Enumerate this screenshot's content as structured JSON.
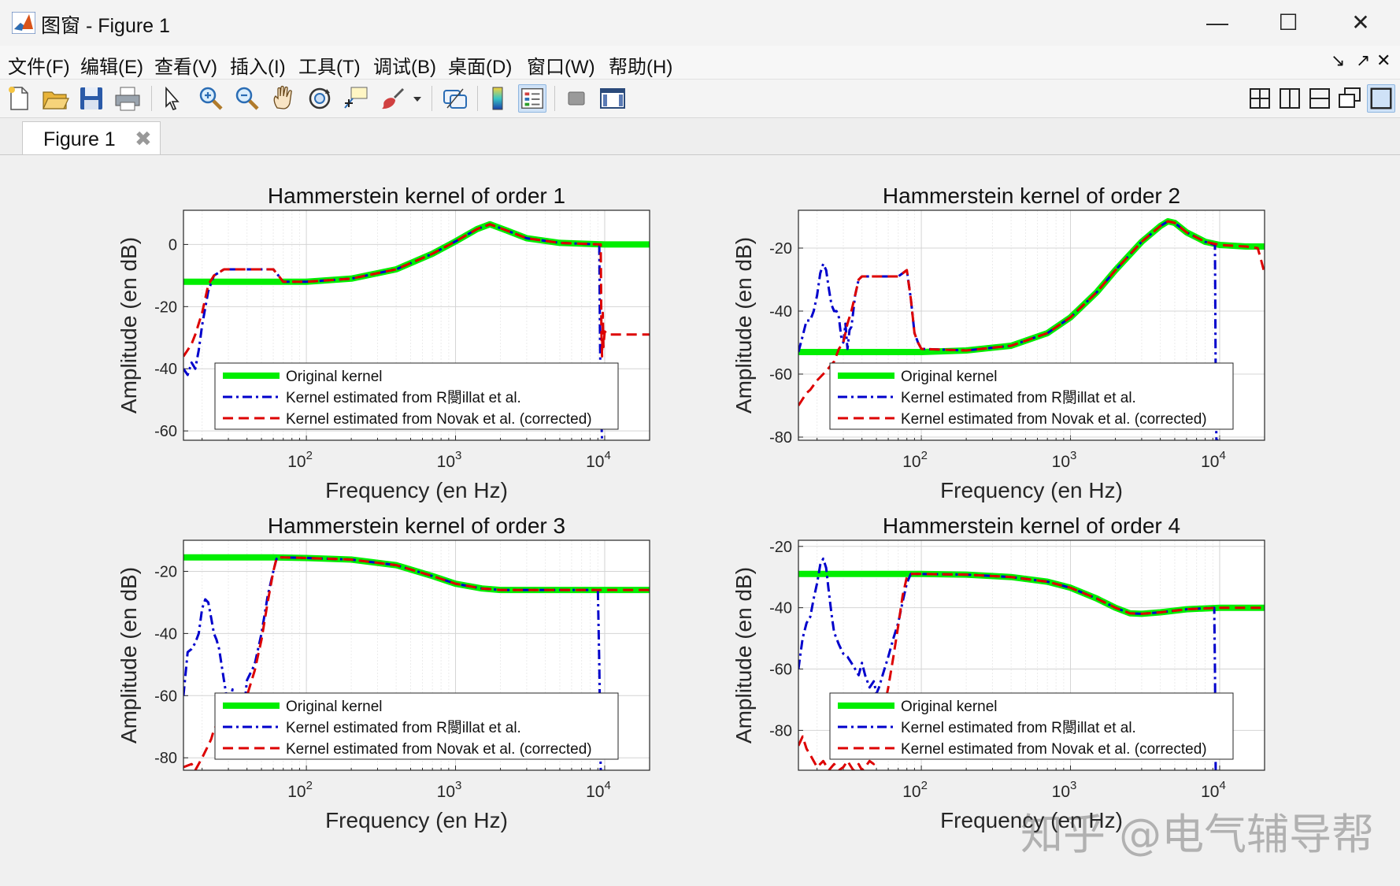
{
  "window": {
    "title": "图窗 - Figure 1",
    "minimize": "—",
    "maximize": "☐",
    "close": "✕"
  },
  "menu": [
    "文件(F)",
    "编辑(E)",
    "查看(V)",
    "插入(I)",
    "工具(T)",
    "调试(B)",
    "桌面(D)",
    "窗口(W)",
    "帮助(H)"
  ],
  "menu_right": [
    "↘",
    "↗",
    "✕"
  ],
  "toolbar": {
    "left": [
      "new-icon",
      "open-icon",
      "save-icon",
      "print-icon",
      "pointer-icon",
      "zoom-in-icon",
      "zoom-out-icon",
      "pan-icon",
      "rotate-3d-icon",
      "data-cursor-icon",
      "brush-icon",
      "link-icon",
      "colorbar-icon",
      "legend-icon",
      "hide-plot-tools-icon",
      "show-plot-tools-icon"
    ],
    "active": [
      "legend-icon"
    ],
    "right": [
      "tile-icon",
      "left-right-icon",
      "top-bottom-icon",
      "float-icon",
      "dock-icon"
    ]
  },
  "tab": {
    "label": "Figure 1",
    "close": "✖"
  },
  "watermark": "知乎 @电气辅导帮",
  "colors": {
    "original": "#00ee00",
    "rebillat": "#0000cc",
    "novak": "#dd0000",
    "axes_bg": "#ffffff",
    "figure_bg": "#f0f0f0"
  },
  "chart_data": [
    {
      "type": "line",
      "title": "Hammerstein kernel of order 1",
      "xlabel": "Frequency (en Hz)",
      "ylabel": "Amplitude (en dB)",
      "xscale": "log",
      "xlim": [
        15,
        20000
      ],
      "ylim": [
        -63,
        11
      ],
      "xticks": [
        100,
        1000,
        10000
      ],
      "xtick_labels": [
        "10^2",
        "10^3",
        "10^4"
      ],
      "yticks": [
        -60,
        -40,
        -20,
        0
      ],
      "grid": true,
      "legend_position": "bottom-right",
      "legend": [
        "Original kernel",
        "Kernel estimated from R閿illat et al.",
        "Kernel estimated from Novak et al. (corrected)"
      ],
      "series": [
        {
          "name": "Original kernel",
          "style": "solid-thick",
          "x": [
            15,
            30,
            60,
            100,
            200,
            400,
            700,
            1000,
            1400,
            1700,
            2200,
            3000,
            5000,
            10000,
            20000
          ],
          "y": [
            -12,
            -12,
            -12,
            -12,
            -11,
            -8,
            -3,
            1,
            5,
            6.5,
            4.5,
            2,
            0.5,
            0,
            0
          ]
        },
        {
          "name": "Kernel estimated from R閿illat et al.",
          "style": "dashdot",
          "x": [
            15,
            16,
            17,
            18,
            19,
            20,
            22,
            24,
            26,
            28,
            30,
            35,
            40,
            50,
            60,
            65,
            70,
            100,
            200,
            400,
            700,
            1000,
            1400,
            1700,
            2200,
            3000,
            5000,
            9200,
            9300,
            9400,
            9600,
            9800
          ],
          "y": [
            -40,
            -42,
            -38,
            -40,
            -34,
            -26,
            -15,
            -10,
            -9,
            -8,
            -8,
            -8,
            -8,
            -8,
            -8,
            -10,
            -12,
            -12,
            -11,
            -8,
            -3,
            1,
            5,
            6.5,
            4.5,
            2,
            0.5,
            0,
            -30,
            -50,
            -63,
            -63
          ]
        },
        {
          "name": "Kernel estimated from Novak et al. (corrected)",
          "style": "dashed",
          "x": [
            15,
            16,
            17,
            18,
            20,
            22,
            24,
            26,
            28,
            30,
            35,
            40,
            50,
            60,
            65,
            70,
            100,
            200,
            400,
            700,
            1000,
            1400,
            1700,
            2200,
            3000,
            5000,
            9400,
            9500,
            9600,
            9700,
            9800,
            10000,
            10500,
            11000,
            20000
          ],
          "y": [
            -36,
            -34,
            -32,
            -29,
            -22,
            -13,
            -10,
            -9,
            -8,
            -8,
            -8,
            -8,
            -8,
            -8,
            -10,
            -12,
            -12,
            -11,
            -8,
            -3,
            1,
            5,
            6.5,
            4.5,
            2,
            0.5,
            0,
            -28,
            -36,
            -22,
            -33,
            -28,
            -29,
            -29,
            -29
          ]
        }
      ]
    },
    {
      "type": "line",
      "title": "Hammerstein kernel of order 2",
      "xlabel": "Frequency (en Hz)",
      "ylabel": "Amplitude (en dB)",
      "xscale": "log",
      "xlim": [
        15,
        20000
      ],
      "ylim": [
        -81,
        -8
      ],
      "xticks": [
        100,
        1000,
        10000
      ],
      "xtick_labels": [
        "10^2",
        "10^3",
        "10^4"
      ],
      "yticks": [
        -80,
        -60,
        -40,
        -20
      ],
      "grid": true,
      "legend_position": "bottom-right",
      "legend": [
        "Original kernel",
        "Kernel estimated from R閿illat et al.",
        "Kernel estimated from Novak et al. (corrected)"
      ],
      "series": [
        {
          "name": "Original kernel",
          "style": "solid-thick",
          "x": [
            15,
            50,
            100,
            200,
            400,
            700,
            1000,
            1500,
            2000,
            3000,
            4000,
            4500,
            5000,
            6000,
            8000,
            10000,
            15000,
            20000
          ],
          "y": [
            -53,
            -53,
            -53,
            -52.5,
            -51,
            -47,
            -42,
            -34,
            -27,
            -18,
            -13,
            -11.5,
            -12,
            -15,
            -18,
            -19,
            -19.5,
            -19.5
          ]
        },
        {
          "name": "Kernel estimated from R閿illat et al.",
          "style": "dashdot",
          "x": [
            15,
            16,
            17,
            18,
            19,
            20,
            21,
            22,
            23,
            24,
            25,
            26,
            27,
            28,
            29,
            30,
            31,
            32,
            33,
            34,
            35,
            36,
            38,
            40,
            45,
            50,
            60,
            70,
            75,
            80,
            85,
            90,
            95,
            100,
            200,
            400,
            700,
            1000,
            1500,
            2000,
            3000,
            4000,
            4500,
            5000,
            6000,
            8000,
            9300,
            9400,
            9500,
            9600,
            9800
          ],
          "y": [
            -53,
            -48,
            -43,
            -43,
            -40,
            -35,
            -28,
            -25,
            -27,
            -33,
            -38,
            -40,
            -40,
            -42,
            -48,
            -50,
            -44,
            -52,
            -46,
            -45,
            -40,
            -35,
            -30,
            -29,
            -29,
            -29,
            -29,
            -29,
            -28,
            -27,
            -36,
            -47,
            -50,
            -52,
            -52.5,
            -51,
            -47,
            -42,
            -34,
            -27,
            -18,
            -13,
            -11.5,
            -12,
            -15,
            -18,
            -19,
            -60,
            -81,
            -81,
            -81
          ]
        },
        {
          "name": "Kernel estimated from Novak et al. (corrected)",
          "style": "dashed",
          "x": [
            15,
            17,
            18,
            20,
            22,
            24,
            26,
            28,
            30,
            32,
            34,
            36,
            38,
            40,
            45,
            50,
            60,
            70,
            75,
            80,
            85,
            90,
            95,
            100,
            200,
            400,
            700,
            1000,
            1500,
            2000,
            3000,
            4000,
            4500,
            5000,
            6000,
            8000,
            10000,
            15000,
            18000,
            19000,
            20000
          ],
          "y": [
            -70,
            -66,
            -65,
            -62,
            -60,
            -58,
            -56,
            -52,
            -50,
            -44,
            -40,
            -35,
            -30,
            -29,
            -29,
            -29,
            -29,
            -29,
            -28,
            -27,
            -36,
            -47,
            -50,
            -52,
            -52.5,
            -51,
            -47,
            -42,
            -34,
            -27,
            -18,
            -13,
            -11.5,
            -12,
            -15,
            -18,
            -19,
            -19.5,
            -20,
            -24,
            -28
          ]
        }
      ]
    },
    {
      "type": "line",
      "title": "Hammerstein kernel of order 3",
      "xlabel": "Frequency (en Hz)",
      "ylabel": "Amplitude (en dB)",
      "xscale": "log",
      "xlim": [
        15,
        20000
      ],
      "ylim": [
        -84,
        -10
      ],
      "xticks": [
        100,
        1000,
        10000
      ],
      "xtick_labels": [
        "10^2",
        "10^3",
        "10^4"
      ],
      "yticks": [
        -80,
        -60,
        -40,
        -20
      ],
      "grid": true,
      "legend_position": "bottom-right",
      "legend": [
        "Original kernel",
        "Kernel estimated from R閿illat et al.",
        "Kernel estimated from Novak et al. (corrected)"
      ],
      "series": [
        {
          "name": "Original kernel",
          "style": "solid-thick",
          "x": [
            15,
            60,
            100,
            200,
            400,
            700,
            1000,
            1500,
            2000,
            3000,
            5000,
            10000,
            20000
          ],
          "y": [
            -15.5,
            -15.5,
            -15.7,
            -16.2,
            -18,
            -21.5,
            -24,
            -25.5,
            -26,
            -26,
            -26,
            -26,
            -26
          ]
        },
        {
          "name": "Kernel estimated from R閿illat et al.",
          "style": "dashdot",
          "x": [
            15,
            16,
            17,
            18,
            19,
            20,
            21,
            22,
            23,
            24,
            25,
            26,
            28,
            30,
            32,
            34,
            36,
            38,
            40,
            45,
            50,
            55,
            60,
            63,
            65,
            70,
            100,
            200,
            400,
            700,
            1000,
            1500,
            2000,
            3000,
            5000,
            9000,
            9200,
            9400,
            9600
          ],
          "y": [
            -60,
            -46,
            -45,
            -43,
            -40,
            -32,
            -29,
            -30,
            -35,
            -40,
            -42,
            -45,
            -55,
            -64,
            -58,
            -70,
            -62,
            -65,
            -55,
            -50,
            -40,
            -28,
            -20,
            -16,
            -15.5,
            -15.5,
            -15.7,
            -16.2,
            -18,
            -21.5,
            -24,
            -25.5,
            -26,
            -26,
            -26,
            -26,
            -50,
            -84,
            -84
          ]
        },
        {
          "name": "Kernel estimated from Novak et al. (corrected)",
          "style": "dashed",
          "x": [
            15,
            17,
            18,
            20,
            22,
            23,
            24,
            26,
            28,
            30,
            32,
            34,
            36,
            38,
            40,
            45,
            50,
            55,
            60,
            63,
            65,
            70,
            100,
            200,
            400,
            700,
            1000,
            1500,
            2000,
            3000,
            5000,
            10000,
            20000
          ],
          "y": [
            -83,
            -82,
            -84,
            -80,
            -76,
            -74,
            -71,
            -68,
            -66,
            -64,
            -65,
            -67,
            -64,
            -62,
            -60,
            -52,
            -42,
            -30,
            -20,
            -16,
            -15.5,
            -15.5,
            -15.7,
            -16.2,
            -18,
            -21.5,
            -24,
            -25.5,
            -26,
            -26,
            -26,
            -26,
            -26
          ]
        }
      ]
    },
    {
      "type": "line",
      "title": "Hammerstein kernel of order 4",
      "xlabel": "Frequency (en Hz)",
      "ylabel": "Amplitude (en dB)",
      "xscale": "log",
      "xlim": [
        15,
        20000
      ],
      "ylim": [
        -93,
        -18
      ],
      "xticks": [
        100,
        1000,
        10000
      ],
      "xtick_labels": [
        "10^2",
        "10^3",
        "10^4"
      ],
      "yticks": [
        -80,
        -60,
        -40,
        -20
      ],
      "grid": true,
      "legend_position": "bottom-right",
      "legend": [
        "Original kernel",
        "Kernel estimated from R閿illat et al.",
        "Kernel estimated from Novak et al. (corrected)"
      ],
      "series": [
        {
          "name": "Original kernel",
          "style": "solid-thick",
          "x": [
            15,
            80,
            100,
            200,
            400,
            700,
            1000,
            1500,
            2000,
            2500,
            3000,
            4000,
            6000,
            10000,
            20000
          ],
          "y": [
            -29,
            -29,
            -29,
            -29.2,
            -30,
            -31.5,
            -33.5,
            -37,
            -40,
            -41.8,
            -42,
            -41.5,
            -40.5,
            -40,
            -40
          ]
        },
        {
          "name": "Kernel estimated from R閿illat et al.",
          "style": "dashdot",
          "x": [
            15,
            16,
            17,
            18,
            19,
            20,
            21,
            22,
            23,
            24,
            25,
            26,
            28,
            30,
            32,
            34,
            36,
            38,
            40,
            42,
            45,
            48,
            50,
            52,
            55,
            60,
            65,
            70,
            75,
            80,
            85,
            100,
            200,
            400,
            700,
            1000,
            1500,
            2000,
            2500,
            3000,
            4000,
            6000,
            9200,
            9300,
            9400,
            9600
          ],
          "y": [
            -60,
            -50,
            -45,
            -43,
            -37,
            -32,
            -26,
            -24,
            -27,
            -35,
            -42,
            -48,
            -52,
            -55,
            -56,
            -58,
            -60,
            -62,
            -58,
            -62,
            -66,
            -64,
            -68,
            -66,
            -62,
            -56,
            -50,
            -45,
            -38,
            -32,
            -29,
            -29,
            -29.2,
            -30,
            -31.5,
            -33.5,
            -37,
            -40,
            -41.8,
            -42,
            -41.5,
            -40.5,
            -40,
            -60,
            -93,
            -93
          ]
        },
        {
          "name": "Kernel estimated from Novak et al. (corrected)",
          "style": "dashed",
          "x": [
            15,
            16,
            17,
            18,
            20,
            22,
            24,
            26,
            28,
            30,
            32,
            35,
            38,
            40,
            42,
            45,
            48,
            50,
            52,
            55,
            60,
            65,
            70,
            75,
            80,
            85,
            100,
            200,
            400,
            700,
            1000,
            1500,
            2000,
            2500,
            3000,
            4000,
            6000,
            10000,
            20000
          ],
          "y": [
            -85,
            -82,
            -86,
            -88,
            -92,
            -90,
            -93,
            -91,
            -93,
            -92,
            -90,
            -93,
            -91,
            -93,
            -92,
            -90,
            -91,
            -88,
            -82,
            -75,
            -66,
            -56,
            -46,
            -36,
            -30,
            -29,
            -29,
            -29.2,
            -30,
            -31.5,
            -33.5,
            -37,
            -40,
            -41.8,
            -42,
            -41.5,
            -40.5,
            -40,
            -40
          ]
        }
      ]
    }
  ]
}
